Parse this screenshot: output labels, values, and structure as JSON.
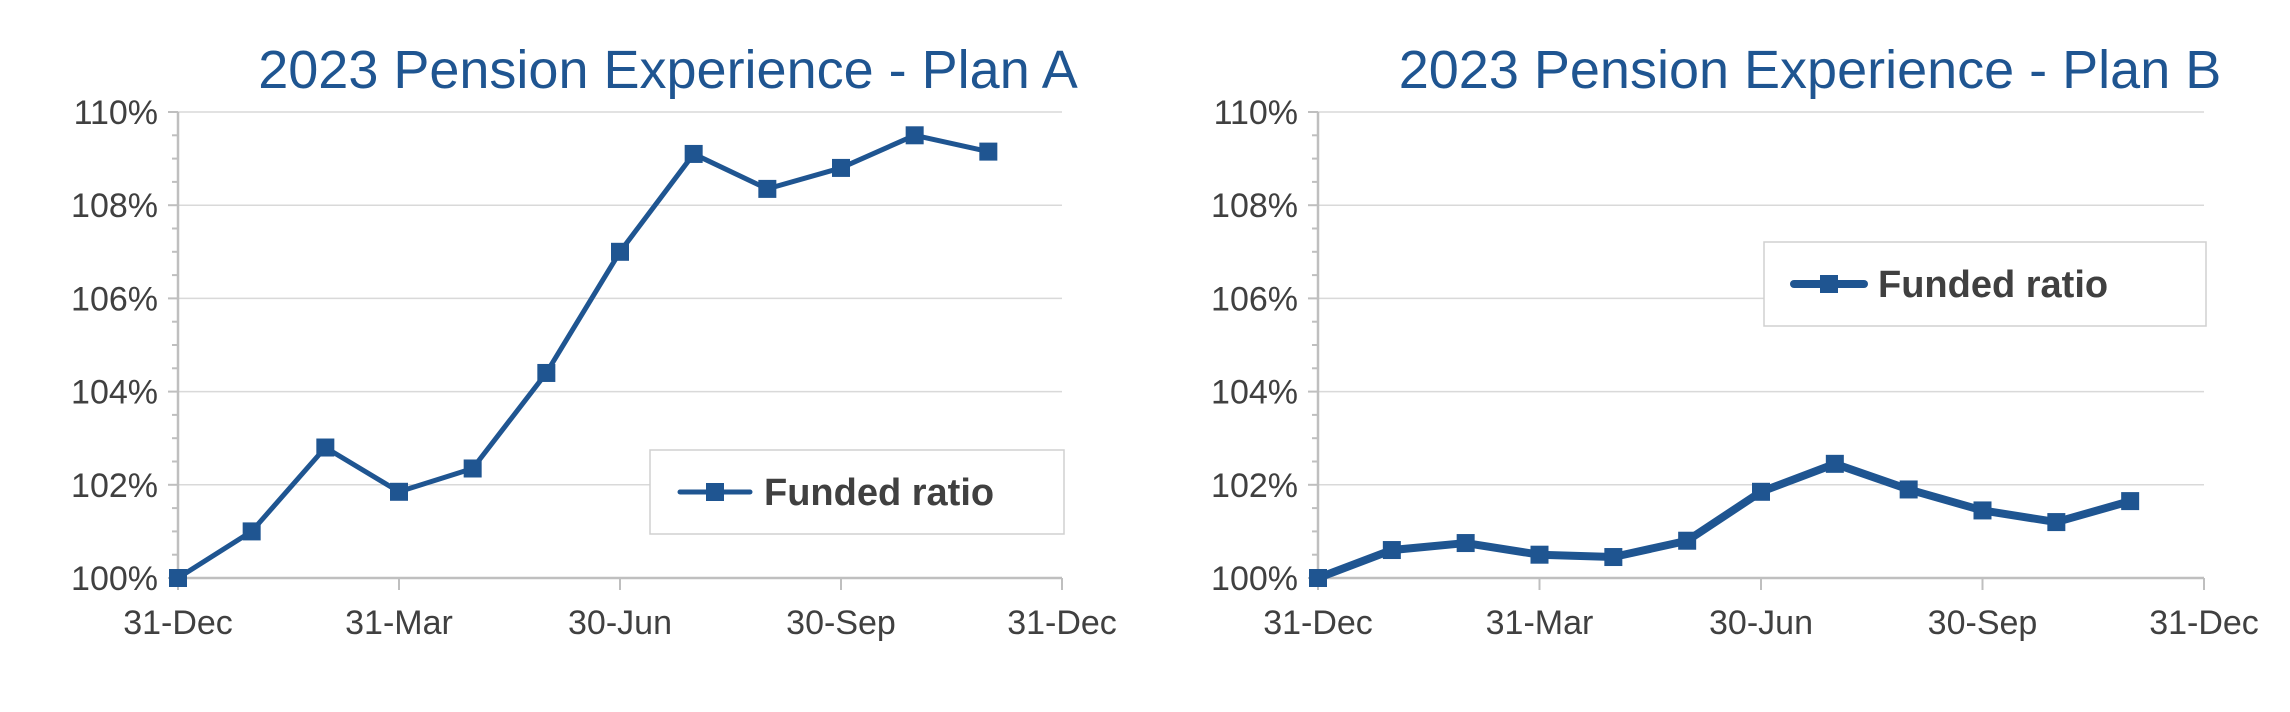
{
  "colors": {
    "series": "#1f5591",
    "title": "#1f5591",
    "grid": "#d9d9d9",
    "axis": "#bfbfbf",
    "text": "#404040",
    "legend_border": "#d0d0d0"
  },
  "chart_data": [
    {
      "type": "line",
      "title": "2023 Pension Experience - Plan A",
      "ylim": [
        100,
        110
      ],
      "y_ticks": [
        "100%",
        "102%",
        "104%",
        "106%",
        "108%",
        "110%"
      ],
      "x_ticks": [
        "31-Dec",
        "31-Mar",
        "30-Jun",
        "30-Sep",
        "31-Dec"
      ],
      "grid": true,
      "legend_position": "bottom-right",
      "series": [
        {
          "name": "Funded ratio",
          "values": [
            100.0,
            101.0,
            102.8,
            101.85,
            102.35,
            104.4,
            107.0,
            109.1,
            108.35,
            108.8,
            109.5,
            109.15
          ]
        }
      ]
    },
    {
      "type": "line",
      "title": "2023 Pension Experience - Plan B",
      "ylim": [
        100,
        110
      ],
      "y_ticks": [
        "100%",
        "102%",
        "104%",
        "106%",
        "108%",
        "110%"
      ],
      "x_ticks": [
        "31-Dec",
        "31-Mar",
        "30-Jun",
        "30-Sep",
        "31-Dec"
      ],
      "grid": true,
      "legend_position": "top-right",
      "series": [
        {
          "name": "Funded ratio",
          "values": [
            100.0,
            100.6,
            100.75,
            100.5,
            100.45,
            100.8,
            101.85,
            102.45,
            101.9,
            101.45,
            101.2,
            101.65
          ]
        }
      ]
    }
  ]
}
